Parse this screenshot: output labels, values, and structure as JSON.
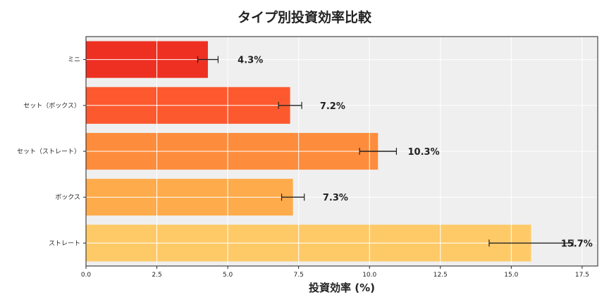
{
  "chart_data": {
    "type": "bar",
    "orientation": "horizontal",
    "title": "タイプ別投資効率比較",
    "xlabel": "投資効率 (%)",
    "ylabel": "",
    "xlim": [
      0,
      18.05
    ],
    "xticks": [
      "0.0",
      "2.5",
      "5.0",
      "7.5",
      "10.0",
      "12.5",
      "15.0",
      "17.5"
    ],
    "grid": true,
    "categories": [
      "ミニ",
      "セット（ボックス）",
      "セット（ストレート）",
      "ボックス",
      "ストレート"
    ],
    "values": [
      4.3,
      7.2,
      10.3,
      7.3,
      15.7
    ],
    "errors": [
      0.36,
      0.41,
      0.65,
      0.4,
      1.48
    ],
    "data_labels": [
      "4.3%",
      "7.2%",
      "10.3%",
      "7.3%",
      "15.7%"
    ],
    "colors": [
      "#ee3023",
      "#fc5a2e",
      "#fd8d3c",
      "#feab4b",
      "#feca68"
    ],
    "background": "#efefef"
  }
}
